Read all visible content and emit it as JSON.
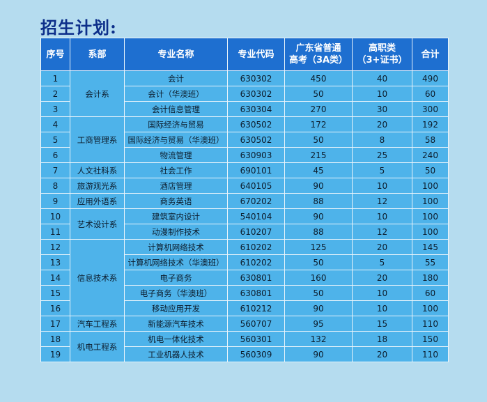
{
  "title": "招生计划:",
  "table": {
    "headers": {
      "seq": "序号",
      "dept": "系部",
      "major": "专业名称",
      "code": "专业代码",
      "gd_line1": "广东省普通",
      "gd_line2": "高考（3A类）",
      "hv_line1": "高职类",
      "hv_line2": "（3+证书）",
      "total": "合计"
    },
    "departments": [
      {
        "name": "会计系",
        "start": 0,
        "span": 3
      },
      {
        "name": "工商管理系",
        "start": 3,
        "span": 3
      },
      {
        "name": "人文社科系",
        "start": 6,
        "span": 1
      },
      {
        "name": "旅游观光系",
        "start": 7,
        "span": 1
      },
      {
        "name": "应用外语系",
        "start": 8,
        "span": 1
      },
      {
        "name": "艺术设计系",
        "start": 9,
        "span": 2
      },
      {
        "name": "信息技术系",
        "start": 11,
        "span": 5
      },
      {
        "name": "汽车工程系",
        "start": 16,
        "span": 1
      },
      {
        "name": "机电工程系",
        "start": 17,
        "span": 2
      }
    ],
    "rows": [
      {
        "seq": "1",
        "major": "会计",
        "code": "630302",
        "gd": "450",
        "hv": "40",
        "total": "490"
      },
      {
        "seq": "2",
        "major": "会计（华澳班）",
        "code": "630302",
        "gd": "50",
        "hv": "10",
        "total": "60"
      },
      {
        "seq": "3",
        "major": "会计信息管理",
        "code": "630304",
        "gd": "270",
        "hv": "30",
        "total": "300"
      },
      {
        "seq": "4",
        "major": "国际经济与贸易",
        "code": "630502",
        "gd": "172",
        "hv": "20",
        "total": "192"
      },
      {
        "seq": "5",
        "major": "国际经济与贸易（华澳班）",
        "code": "630502",
        "gd": "50",
        "hv": "8",
        "total": "58"
      },
      {
        "seq": "6",
        "major": "物流管理",
        "code": "630903",
        "gd": "215",
        "hv": "25",
        "total": "240"
      },
      {
        "seq": "7",
        "major": "社会工作",
        "code": "690101",
        "gd": "45",
        "hv": "5",
        "total": "50"
      },
      {
        "seq": "8",
        "major": "酒店管理",
        "code": "640105",
        "gd": "90",
        "hv": "10",
        "total": "100"
      },
      {
        "seq": "9",
        "major": "商务英语",
        "code": "670202",
        "gd": "88",
        "hv": "12",
        "total": "100"
      },
      {
        "seq": "10",
        "major": "建筑室内设计",
        "code": "540104",
        "gd": "90",
        "hv": "10",
        "total": "100"
      },
      {
        "seq": "11",
        "major": "动漫制作技术",
        "code": "610207",
        "gd": "88",
        "hv": "12",
        "total": "100"
      },
      {
        "seq": "12",
        "major": "计算机网络技术",
        "code": "610202",
        "gd": "125",
        "hv": "20",
        "total": "145"
      },
      {
        "seq": "13",
        "major": "计算机网络技术（华澳班）",
        "code": "610202",
        "gd": "50",
        "hv": "5",
        "total": "55"
      },
      {
        "seq": "14",
        "major": "电子商务",
        "code": "630801",
        "gd": "160",
        "hv": "20",
        "total": "180"
      },
      {
        "seq": "15",
        "major": "电子商务（华澳班）",
        "code": "630801",
        "gd": "50",
        "hv": "10",
        "total": "60"
      },
      {
        "seq": "16",
        "major": "移动应用开发",
        "code": "610212",
        "gd": "90",
        "hv": "10",
        "total": "100"
      },
      {
        "seq": "17",
        "major": "新能源汽车技术",
        "code": "560707",
        "gd": "95",
        "hv": "15",
        "total": "110"
      },
      {
        "seq": "18",
        "major": "机电一体化技术",
        "code": "560301",
        "gd": "132",
        "hv": "18",
        "total": "150"
      },
      {
        "seq": "19",
        "major": "工业机器人技术",
        "code": "560309",
        "gd": "90",
        "hv": "20",
        "total": "110"
      }
    ]
  }
}
